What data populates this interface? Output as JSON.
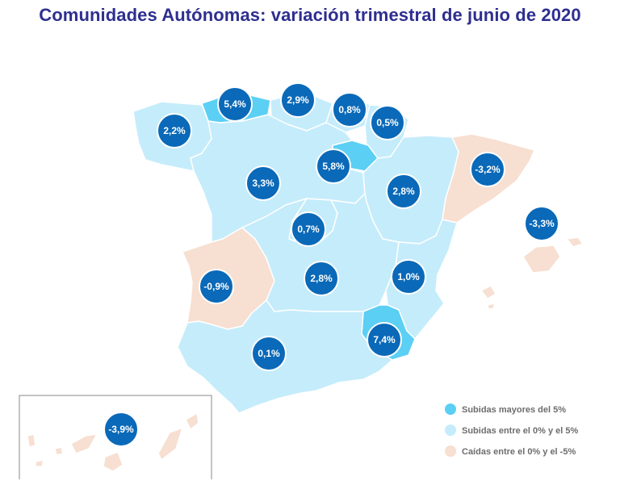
{
  "title": "Comunidades Autónomas: variación trimestral de junio de 2020",
  "colors": {
    "above5": "#5bcff4",
    "between0and5": "#c5ecfb",
    "negative": "#f7dfd1",
    "bubble": "#0a69b8",
    "border": "#ffffff",
    "title": "#2e2f8f"
  },
  "legend": [
    {
      "label": "Subidas mayores del 5%",
      "color_key": "above5"
    },
    {
      "label": "Subidas entre el 0% y el 5%",
      "color_key": "between0and5"
    },
    {
      "label": "Caídas entre el 0% y el -5%",
      "color_key": "negative"
    }
  ],
  "regions": [
    {
      "id": "galicia",
      "value": "2,2%",
      "category": "between0and5"
    },
    {
      "id": "asturias",
      "value": "5,4%",
      "category": "above5"
    },
    {
      "id": "cantabria",
      "value": "2,9%",
      "category": "between0and5"
    },
    {
      "id": "pais-vasco",
      "value": "0,8%",
      "category": "between0and5"
    },
    {
      "id": "navarra",
      "value": "0,5%",
      "category": "between0and5"
    },
    {
      "id": "cataluna",
      "value": "-3,2%",
      "category": "negative"
    },
    {
      "id": "castilla-y-leon",
      "value": "3,3%",
      "category": "between0and5"
    },
    {
      "id": "la-rioja",
      "value": "5,8%",
      "category": "above5"
    },
    {
      "id": "aragon",
      "value": "2,8%",
      "category": "between0and5"
    },
    {
      "id": "baleares",
      "value": "-3,3%",
      "category": "negative"
    },
    {
      "id": "madrid",
      "value": "0,7%",
      "category": "between0and5"
    },
    {
      "id": "extremadura",
      "value": "-0,9%",
      "category": "negative"
    },
    {
      "id": "castilla-la-mancha",
      "value": "2,8%",
      "category": "between0and5"
    },
    {
      "id": "valencia",
      "value": "1,0%",
      "category": "between0and5"
    },
    {
      "id": "murcia",
      "value": "7,4%",
      "category": "above5"
    },
    {
      "id": "andalucia",
      "value": "0,1%",
      "category": "between0and5"
    },
    {
      "id": "canarias",
      "value": "-3,9%",
      "category": "negative"
    }
  ]
}
